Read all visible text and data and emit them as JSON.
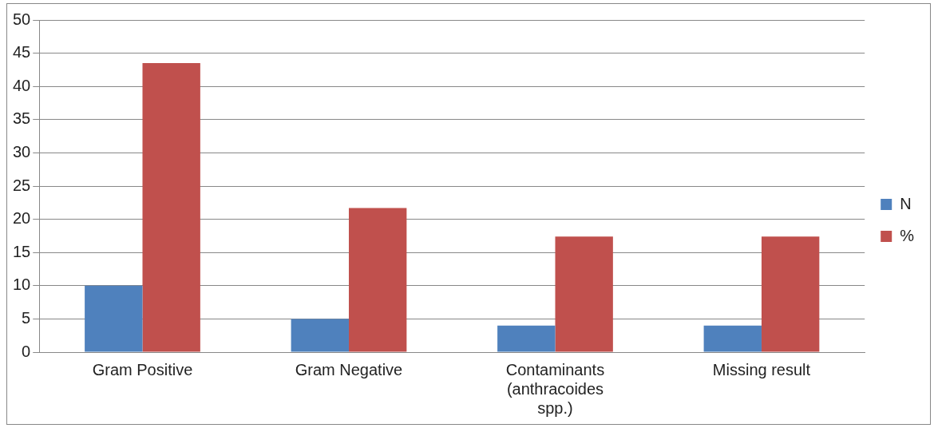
{
  "chart_data": {
    "type": "bar",
    "categories": [
      "Gram Positive",
      "Gram Negative",
      "Contaminants (anthracoides spp.)",
      "Missing result"
    ],
    "series": [
      {
        "name": "N",
        "color": "#4f81bd",
        "values": [
          10,
          5,
          4,
          4
        ]
      },
      {
        "name": "%",
        "color": "#c0504d",
        "values": [
          43.5,
          21.7,
          17.4,
          17.4
        ]
      }
    ],
    "ylim": [
      0,
      50
    ],
    "yticks": [
      0,
      5,
      10,
      15,
      20,
      25,
      30,
      35,
      40,
      45,
      50
    ],
    "grid": "y",
    "legend": "right"
  }
}
